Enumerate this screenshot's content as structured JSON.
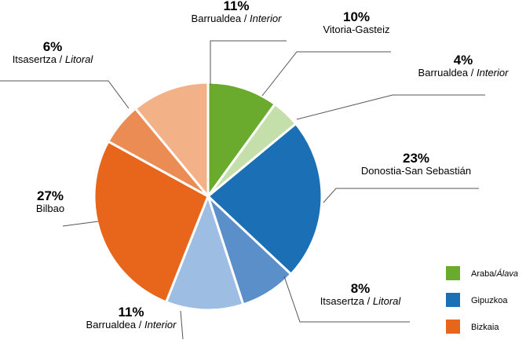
{
  "chart_data": {
    "type": "pie",
    "slices": [
      {
        "percent_label": "23%",
        "value": 23,
        "name": "Donostia-San Sebastián",
        "name_italic": "",
        "group": "Gipuzkoa"
      },
      {
        "percent_label": "8%",
        "value": 8,
        "name": "Itsasertza / ",
        "name_italic": "Litoral",
        "group": "Gipuzkoa"
      },
      {
        "percent_label": "11%",
        "value": 11,
        "name": "Barrualdea / ",
        "name_italic": "Interior",
        "group": "Gipuzkoa"
      },
      {
        "percent_label": "27%",
        "value": 27,
        "name": "Bilbao",
        "name_italic": "",
        "group": "Bizkaia"
      },
      {
        "percent_label": "6%",
        "value": 6,
        "name": "Itsasertza / ",
        "name_italic": "Litoral",
        "group": "Bizkaia"
      },
      {
        "percent_label": "11%",
        "value": 11,
        "name": "Barrualdea / ",
        "name_italic": "Interior",
        "group": "Bizkaia"
      },
      {
        "percent_label": "10%",
        "value": 10,
        "name": "Vitoria-Gasteiz",
        "name_italic": "",
        "group": "Araba/Álava"
      },
      {
        "percent_label": "4%",
        "value": 4,
        "name": "Barrualdea / ",
        "name_italic": "Interior",
        "group": "Araba/Álava"
      }
    ],
    "legend": [
      {
        "name": "Araba/",
        "name_italic": "Álava",
        "color": "#6aab2e"
      },
      {
        "name": "Gipuzkoa",
        "name_italic": "",
        "color": "#1a6fb5"
      },
      {
        "name": "Bizkaia",
        "name_italic": "",
        "color": "#e8661c"
      }
    ],
    "slice_colors": [
      "#1a6fb5",
      "#5b8fca",
      "#9dbde3",
      "#e8661c",
      "#ec8c55",
      "#f3b187",
      "#6aab2e",
      "#c4dfaa"
    ],
    "legend_placement": "bottom-right"
  }
}
